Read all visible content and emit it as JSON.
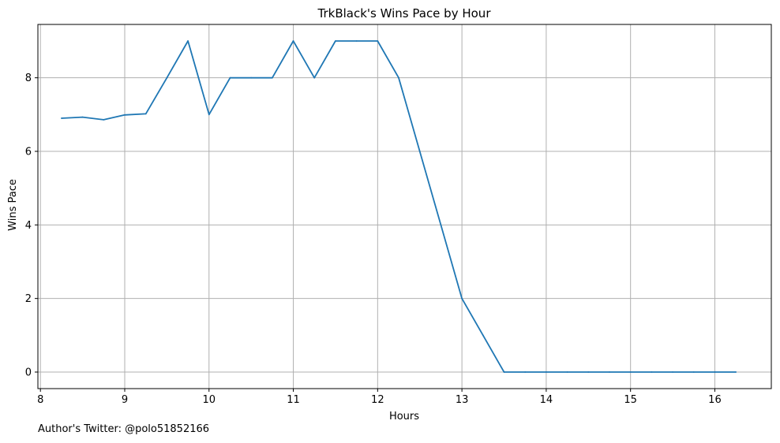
{
  "chart_data": {
    "type": "line",
    "title": "TrkBlack's Wins Pace by Hour",
    "xlabel": "Hours",
    "ylabel": "Wins Pace",
    "xlim": [
      7.97,
      16.67
    ],
    "ylim": [
      -0.45,
      9.45
    ],
    "xticks": [
      8,
      9,
      10,
      11,
      12,
      13,
      14,
      15,
      16
    ],
    "yticks": [
      0,
      2,
      4,
      6,
      8
    ],
    "grid": true,
    "line_color": "#1f77b4",
    "series": [
      {
        "x": [
          8.25,
          8.5,
          8.75,
          9.0,
          9.25,
          9.5,
          9.75,
          10.0,
          10.25,
          10.5,
          10.75,
          11.0,
          11.25,
          11.5,
          11.75,
          12.0,
          12.25,
          12.5,
          12.75,
          13.0,
          13.25,
          13.5,
          13.75,
          14.0,
          14.25,
          14.5,
          14.75,
          15.0,
          15.25,
          15.5,
          15.75,
          16.0,
          16.25
        ],
        "values": [
          6.9,
          6.93,
          6.86,
          6.99,
          7.02,
          8.0,
          9.0,
          7.0,
          8.0,
          8.0,
          8.0,
          9.0,
          8.0,
          9.0,
          9.0,
          9.0,
          8.0,
          6.0,
          4.0,
          2.0,
          1.0,
          0,
          0,
          0,
          0,
          0,
          0,
          0,
          0,
          0,
          0,
          0,
          0
        ]
      }
    ]
  },
  "footnote": "Author's Twitter: @polo51852166"
}
